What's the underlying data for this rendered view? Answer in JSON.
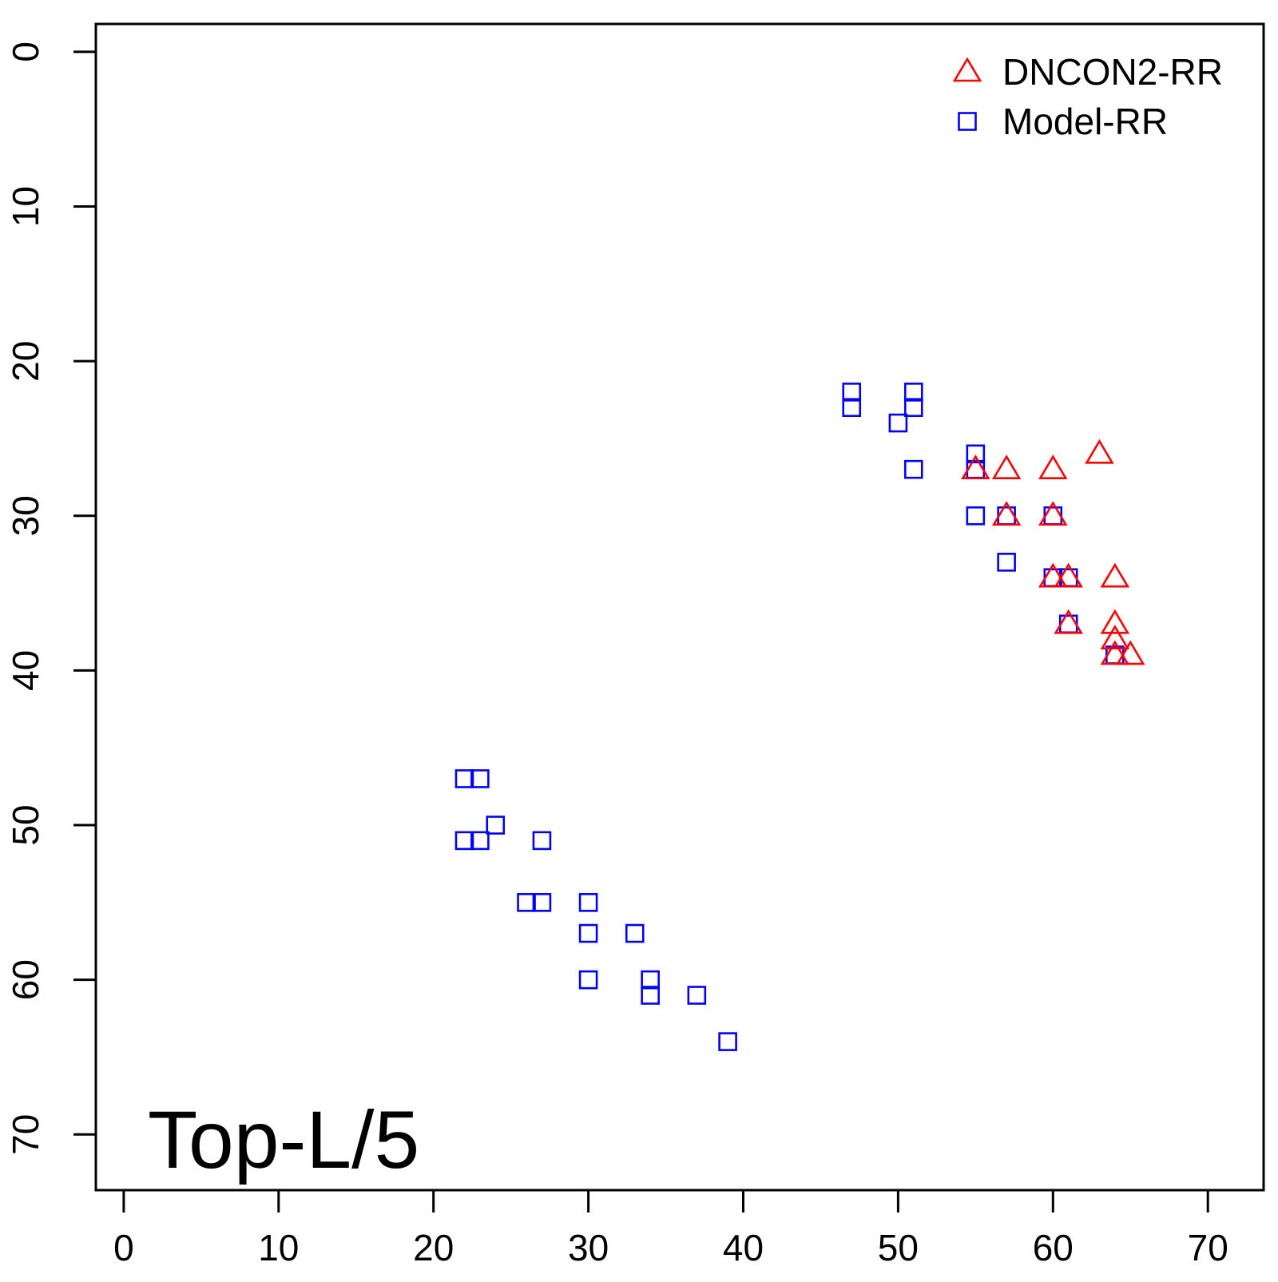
{
  "chart_data": {
    "type": "scatter",
    "title": "",
    "xlabel": "",
    "ylabel": "",
    "xlim": [
      -1.8,
      73.6
    ],
    "ylim": [
      -1.8,
      73.6
    ],
    "y_inverted": true,
    "x_ticks": [
      0,
      10,
      20,
      30,
      40,
      50,
      60,
      70
    ],
    "y_ticks": [
      0,
      10,
      20,
      30,
      40,
      50,
      60,
      70
    ],
    "x_tick_labels": [
      "0",
      "10",
      "20",
      "30",
      "40",
      "50",
      "60",
      "70"
    ],
    "y_tick_labels": [
      "0",
      "10",
      "20",
      "30",
      "40",
      "50",
      "60",
      "70"
    ],
    "grid": false,
    "legend_position": "top-right",
    "annotation": "Top-L/5",
    "series": [
      {
        "name": "DNCON2-RR",
        "marker": "triangle",
        "color": "#ff0000",
        "points": [
          [
            55,
            27
          ],
          [
            57,
            27
          ],
          [
            60,
            27
          ],
          [
            63,
            26
          ],
          [
            57,
            30
          ],
          [
            60,
            30
          ],
          [
            60,
            34
          ],
          [
            61,
            34
          ],
          [
            64,
            34
          ],
          [
            61,
            37
          ],
          [
            64,
            37
          ],
          [
            64,
            38
          ],
          [
            64,
            39
          ],
          [
            65,
            39
          ]
        ]
      },
      {
        "name": "Model-RR",
        "marker": "square",
        "color": "#0000ff",
        "points": [
          [
            47,
            22
          ],
          [
            47,
            23
          ],
          [
            51,
            22
          ],
          [
            51,
            23
          ],
          [
            50,
            24
          ],
          [
            51,
            27
          ],
          [
            55,
            26
          ],
          [
            55,
            27
          ],
          [
            55,
            30
          ],
          [
            57,
            30
          ],
          [
            60,
            30
          ],
          [
            57,
            33
          ],
          [
            60,
            34
          ],
          [
            61,
            34
          ],
          [
            61,
            37
          ],
          [
            64,
            39
          ],
          [
            22,
            47
          ],
          [
            23,
            47
          ],
          [
            24,
            50
          ],
          [
            22,
            51
          ],
          [
            23,
            51
          ],
          [
            27,
            51
          ],
          [
            26,
            55
          ],
          [
            27,
            55
          ],
          [
            30,
            55
          ],
          [
            30,
            57
          ],
          [
            33,
            57
          ],
          [
            30,
            60
          ],
          [
            34,
            60
          ],
          [
            34,
            61
          ],
          [
            37,
            61
          ],
          [
            39,
            64
          ]
        ]
      }
    ]
  }
}
